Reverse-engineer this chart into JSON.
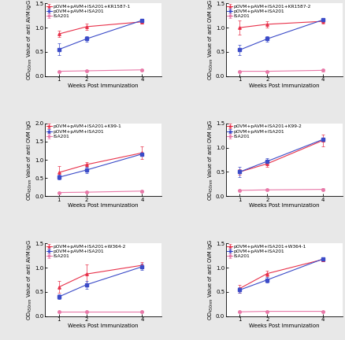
{
  "panels": [
    {
      "ylabel_short": "OD$_{450nm}$ Value of anti AVM IgG",
      "legend_line1": "pOVM+pAVM+ISA201+KR1587-1",
      "legend_line2": "pOVM+pAVM+ISA201",
      "legend_line3": "ISA201",
      "x": [
        1,
        2,
        4
      ],
      "red_y": [
        0.87,
        1.02,
        1.12
      ],
      "red_yerr": [
        0.07,
        0.06,
        0.04
      ],
      "blue_y": [
        0.55,
        0.77,
        1.15
      ],
      "blue_yerr": [
        0.12,
        0.06,
        0.03
      ],
      "pink_y": [
        0.1,
        0.11,
        0.13
      ],
      "pink_yerr": [
        0.01,
        0.01,
        0.02
      ],
      "ylim": [
        0,
        1.5
      ],
      "yticks": [
        0.0,
        0.5,
        1.0,
        1.5
      ]
    },
    {
      "ylabel_short": "OD$_{450nm}$ Value of anti OVM IgG",
      "legend_line1": "pOVM+pAVM+ISA201+KR1587-2",
      "legend_line2": "pOVM+pAVM+ISA201",
      "legend_line3": "ISA201",
      "x": [
        1,
        2,
        4
      ],
      "red_y": [
        1.0,
        1.07,
        1.13
      ],
      "red_yerr": [
        0.15,
        0.06,
        0.04
      ],
      "blue_y": [
        0.54,
        0.77,
        1.16
      ],
      "blue_yerr": [
        0.1,
        0.06,
        0.03
      ],
      "pink_y": [
        0.1,
        0.1,
        0.12
      ],
      "pink_yerr": [
        0.01,
        0.01,
        0.02
      ],
      "ylim": [
        0,
        1.5
      ],
      "yticks": [
        0.0,
        0.5,
        1.0,
        1.5
      ]
    },
    {
      "ylabel_short": "OD$_{450nm}$ Value of anti OVM IgG",
      "legend_line1": "pOVM+pAVM+ISA201+K99-1",
      "legend_line2": "pOVM+pAVM+ISA201",
      "legend_line3": "ISA201",
      "x": [
        1,
        2,
        4
      ],
      "red_y": [
        0.65,
        0.87,
        1.19
      ],
      "red_yerr": [
        0.17,
        0.07,
        0.17
      ],
      "blue_y": [
        0.52,
        0.72,
        1.16
      ],
      "blue_yerr": [
        0.06,
        0.09,
        0.04
      ],
      "pink_y": [
        0.1,
        0.11,
        0.14
      ],
      "pink_yerr": [
        0.01,
        0.01,
        0.02
      ],
      "ylim": [
        0,
        2.0
      ],
      "yticks": [
        0.0,
        0.5,
        1.0,
        1.5,
        2.0
      ]
    },
    {
      "ylabel_short": "OD$_{450nm}$ Value of anti OVM IgG",
      "legend_line1": "pOVM+pAVM+ISA201+K99-2",
      "legend_line2": "pOVM+pAVM+ISA201",
      "legend_line3": "ISA201",
      "x": [
        1,
        2,
        4
      ],
      "red_y": [
        0.5,
        0.67,
        1.15
      ],
      "red_yerr": [
        0.06,
        0.07,
        0.12
      ],
      "blue_y": [
        0.5,
        0.72,
        1.17
      ],
      "blue_yerr": [
        0.1,
        0.06,
        0.04
      ],
      "pink_y": [
        0.12,
        0.13,
        0.14
      ],
      "pink_yerr": [
        0.01,
        0.01,
        0.02
      ],
      "ylim": [
        0,
        1.5
      ],
      "yticks": [
        0.0,
        0.5,
        1.0,
        1.5
      ]
    },
    {
      "ylabel_short": "OD$_{450nm}$ Value of anti AVM IgG",
      "legend_line1": "pOVM+pAVM+ISA201+W364-2",
      "legend_line2": "pOVM+pAVM+ISA201",
      "legend_line3": "ISA201",
      "x": [
        1,
        2,
        4
      ],
      "red_y": [
        0.6,
        0.87,
        1.05
      ],
      "red_yerr": [
        0.12,
        0.2,
        0.07
      ],
      "blue_y": [
        0.4,
        0.65,
        1.02
      ],
      "blue_yerr": [
        0.05,
        0.08,
        0.07
      ],
      "pink_y": [
        0.09,
        0.09,
        0.09
      ],
      "pink_yerr": [
        0.01,
        0.01,
        0.01
      ],
      "ylim": [
        0,
        1.5
      ],
      "yticks": [
        0.0,
        0.5,
        1.0,
        1.5
      ]
    },
    {
      "ylabel_short": "OD$_{450nm}$ Value of anti OVM IgG",
      "legend_line1": "pOVM+pAVM+ISA201+W364-1",
      "legend_line2": "pOVM+pAVM+ISA201",
      "legend_line3": "ISA201",
      "x": [
        1,
        2,
        4
      ],
      "red_y": [
        0.57,
        0.88,
        1.17
      ],
      "red_yerr": [
        0.08,
        0.05,
        0.04
      ],
      "blue_y": [
        0.54,
        0.75,
        1.18
      ],
      "blue_yerr": [
        0.06,
        0.06,
        0.04
      ],
      "pink_y": [
        0.09,
        0.1,
        0.1
      ],
      "pink_yerr": [
        0.01,
        0.01,
        0.01
      ],
      "ylim": [
        0,
        1.5
      ],
      "yticks": [
        0.0,
        0.5,
        1.0,
        1.5
      ]
    }
  ],
  "red_color": "#E8314A",
  "blue_color": "#3B4BC8",
  "pink_color": "#E878A8",
  "bg_color": "#E8E8E8",
  "plot_bg": "#FFFFFF",
  "xlabel": "Weeks Post Immunization",
  "xticks": [
    1,
    2,
    4
  ],
  "fontsize_legend": 4.2,
  "fontsize_tick": 5.0,
  "fontsize_ylabel": 4.8,
  "fontsize_xlabel": 5.0,
  "marker_red": "^",
  "marker_blue": "s",
  "marker_pink": "o",
  "markersize": 2.5,
  "linewidth": 0.8,
  "capsize": 1.5,
  "elinewidth": 0.5
}
